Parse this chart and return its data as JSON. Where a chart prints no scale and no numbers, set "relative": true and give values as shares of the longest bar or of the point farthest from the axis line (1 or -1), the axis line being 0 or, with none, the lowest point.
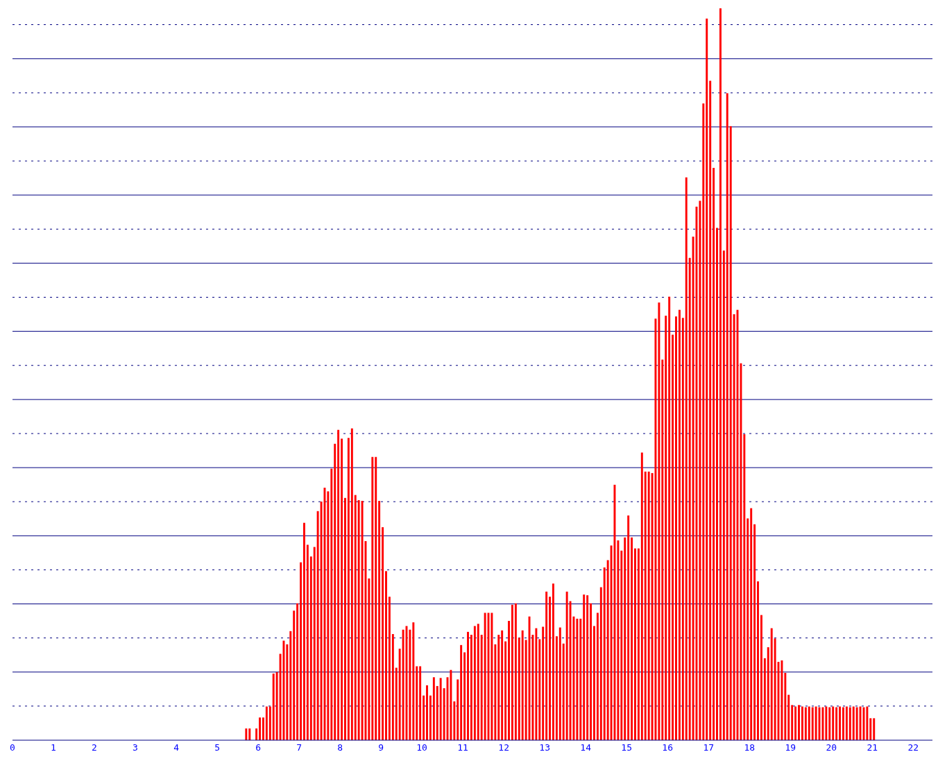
{
  "chart_data": {
    "type": "bar",
    "relative": true,
    "color": "#ff0000",
    "xlim": [
      0,
      22.47
    ],
    "xticks": [
      0,
      1,
      2,
      3,
      4,
      5,
      6,
      7,
      8,
      9,
      10,
      11,
      12,
      13,
      14,
      15,
      16,
      17,
      18,
      19,
      20,
      21,
      22
    ],
    "ref_lines": [
      {
        "axis": "y",
        "value": 0.0466,
        "color": "#000080",
        "line_style": "dotted"
      },
      {
        "axis": "y",
        "value": 0.0931,
        "color": "#000080",
        "line_style": "solid"
      },
      {
        "axis": "y",
        "value": 0.1397,
        "color": "#000080",
        "line_style": "dotted"
      },
      {
        "axis": "y",
        "value": 0.1862,
        "color": "#000080",
        "line_style": "solid"
      },
      {
        "axis": "y",
        "value": 0.2328,
        "color": "#000080",
        "line_style": "dotted"
      },
      {
        "axis": "y",
        "value": 0.2793,
        "color": "#000080",
        "line_style": "solid"
      },
      {
        "axis": "y",
        "value": 0.3259,
        "color": "#000080",
        "line_style": "dotted"
      },
      {
        "axis": "y",
        "value": 0.3724,
        "color": "#000080",
        "line_style": "solid"
      },
      {
        "axis": "y",
        "value": 0.419,
        "color": "#000080",
        "line_style": "dotted"
      },
      {
        "axis": "y",
        "value": 0.4655,
        "color": "#000080",
        "line_style": "solid"
      },
      {
        "axis": "y",
        "value": 0.5121,
        "color": "#000080",
        "line_style": "dotted"
      },
      {
        "axis": "y",
        "value": 0.5587,
        "color": "#000080",
        "line_style": "solid"
      },
      {
        "axis": "y",
        "value": 0.6052,
        "color": "#000080",
        "line_style": "dotted"
      },
      {
        "axis": "y",
        "value": 0.6518,
        "color": "#000080",
        "line_style": "solid"
      },
      {
        "axis": "y",
        "value": 0.6983,
        "color": "#000080",
        "line_style": "dotted"
      },
      {
        "axis": "y",
        "value": 0.7449,
        "color": "#000080",
        "line_style": "solid"
      },
      {
        "axis": "y",
        "value": 0.7914,
        "color": "#000080",
        "line_style": "dotted"
      },
      {
        "axis": "y",
        "value": 0.838,
        "color": "#000080",
        "line_style": "solid"
      },
      {
        "axis": "y",
        "value": 0.8845,
        "color": "#000080",
        "line_style": "dotted"
      },
      {
        "axis": "y",
        "value": 0.9311,
        "color": "#000080",
        "line_style": "solid"
      },
      {
        "axis": "y",
        "value": 0.9777,
        "color": "#000080",
        "line_style": "dotted"
      }
    ],
    "x": [
      5.708,
      5.792,
      5.875,
      5.958,
      6.042,
      6.125,
      6.208,
      6.292,
      6.375,
      6.458,
      6.542,
      6.625,
      6.708,
      6.792,
      6.875,
      6.958,
      7.042,
      7.125,
      7.208,
      7.292,
      7.375,
      7.458,
      7.542,
      7.625,
      7.708,
      7.792,
      7.875,
      7.958,
      8.042,
      8.125,
      8.208,
      8.292,
      8.375,
      8.458,
      8.542,
      8.625,
      8.708,
      8.792,
      8.875,
      8.958,
      9.042,
      9.125,
      9.208,
      9.292,
      9.375,
      9.458,
      9.542,
      9.625,
      9.708,
      9.792,
      9.875,
      9.958,
      10.042,
      10.125,
      10.208,
      10.292,
      10.375,
      10.458,
      10.542,
      10.625,
      10.708,
      10.792,
      10.875,
      10.958,
      11.042,
      11.125,
      11.208,
      11.292,
      11.375,
      11.458,
      11.542,
      11.625,
      11.708,
      11.792,
      11.875,
      11.958,
      12.042,
      12.125,
      12.208,
      12.292,
      12.375,
      12.458,
      12.542,
      12.625,
      12.708,
      12.792,
      12.875,
      12.958,
      13.042,
      13.125,
      13.208,
      13.292,
      13.375,
      13.458,
      13.542,
      13.625,
      13.708,
      13.792,
      13.875,
      13.958,
      14.042,
      14.125,
      14.208,
      14.292,
      14.375,
      14.458,
      14.542,
      14.625,
      14.708,
      14.792,
      14.875,
      14.958,
      15.042,
      15.125,
      15.208,
      15.292,
      15.375,
      15.458,
      15.542,
      15.625,
      15.708,
      15.792,
      15.875,
      15.958,
      16.042,
      16.125,
      16.208,
      16.292,
      16.375,
      16.458,
      16.542,
      16.625,
      16.708,
      16.792,
      16.875,
      16.958,
      17.042,
      17.125,
      17.208,
      17.292,
      17.375,
      17.458,
      17.542,
      17.625,
      17.708,
      17.792,
      17.875,
      17.958,
      18.042,
      18.125,
      18.208,
      18.292,
      18.375,
      18.458,
      18.542,
      18.625,
      18.708,
      18.792,
      18.875,
      18.958,
      19.042,
      19.125,
      19.208,
      19.292,
      19.375,
      19.458,
      19.542,
      19.625,
      19.708,
      19.792,
      19.875,
      19.958,
      20.042,
      20.125,
      20.208,
      20.292,
      20.375,
      20.458,
      20.542,
      20.625,
      20.708,
      20.792,
      20.875,
      20.958,
      21.042
    ],
    "values": [
      0.016,
      0.016,
      0,
      0.016,
      0.031,
      0.031,
      0.046,
      0.046,
      0.091,
      0.093,
      0.118,
      0.136,
      0.131,
      0.149,
      0.177,
      0.187,
      0.243,
      0.297,
      0.267,
      0.251,
      0.264,
      0.313,
      0.326,
      0.345,
      0.34,
      0.371,
      0.405,
      0.424,
      0.412,
      0.331,
      0.413,
      0.426,
      0.335,
      0.328,
      0.327,
      0.272,
      0.221,
      0.387,
      0.387,
      0.327,
      0.291,
      0.231,
      0.196,
      0.145,
      0.099,
      0.125,
      0.151,
      0.156,
      0.151,
      0.161,
      0.101,
      0.101,
      0.061,
      0.075,
      0.061,
      0.086,
      0.074,
      0.085,
      0.071,
      0.086,
      0.096,
      0.053,
      0.083,
      0.13,
      0.12,
      0.148,
      0.144,
      0.156,
      0.159,
      0.144,
      0.174,
      0.174,
      0.174,
      0.131,
      0.144,
      0.15,
      0.135,
      0.163,
      0.185,
      0.187,
      0.14,
      0.15,
      0.137,
      0.169,
      0.144,
      0.153,
      0.138,
      0.155,
      0.203,
      0.196,
      0.214,
      0.142,
      0.154,
      0.132,
      0.203,
      0.19,
      0.169,
      0.166,
      0.166,
      0.199,
      0.198,
      0.187,
      0.156,
      0.174,
      0.209,
      0.236,
      0.246,
      0.266,
      0.349,
      0.273,
      0.259,
      0.277,
      0.307,
      0.277,
      0.262,
      0.262,
      0.393,
      0.367,
      0.367,
      0.365,
      0.576,
      0.598,
      0.52,
      0.58,
      0.606,
      0.554,
      0.579,
      0.588,
      0.577,
      0.769,
      0.659,
      0.688,
      0.729,
      0.737,
      0.87,
      0.986,
      0.901,
      0.782,
      0.7,
      1,
      0.669,
      0.884,
      0.839,
      0.582,
      0.588,
      0.515,
      0.418,
      0.303,
      0.317,
      0.295,
      0.217,
      0.171,
      0.112,
      0.127,
      0.153,
      0.139,
      0.107,
      0.109,
      0.092,
      0.062,
      0.048,
      0.046,
      0.048,
      0.046,
      0.045,
      0.046,
      0.045,
      0.046,
      0.045,
      0.045,
      0.046,
      0.045,
      0.046,
      0.045,
      0.046,
      0.045,
      0.046,
      0.045,
      0.046,
      0.045,
      0.046,
      0.045,
      0.046,
      0.03,
      0.03
    ]
  }
}
